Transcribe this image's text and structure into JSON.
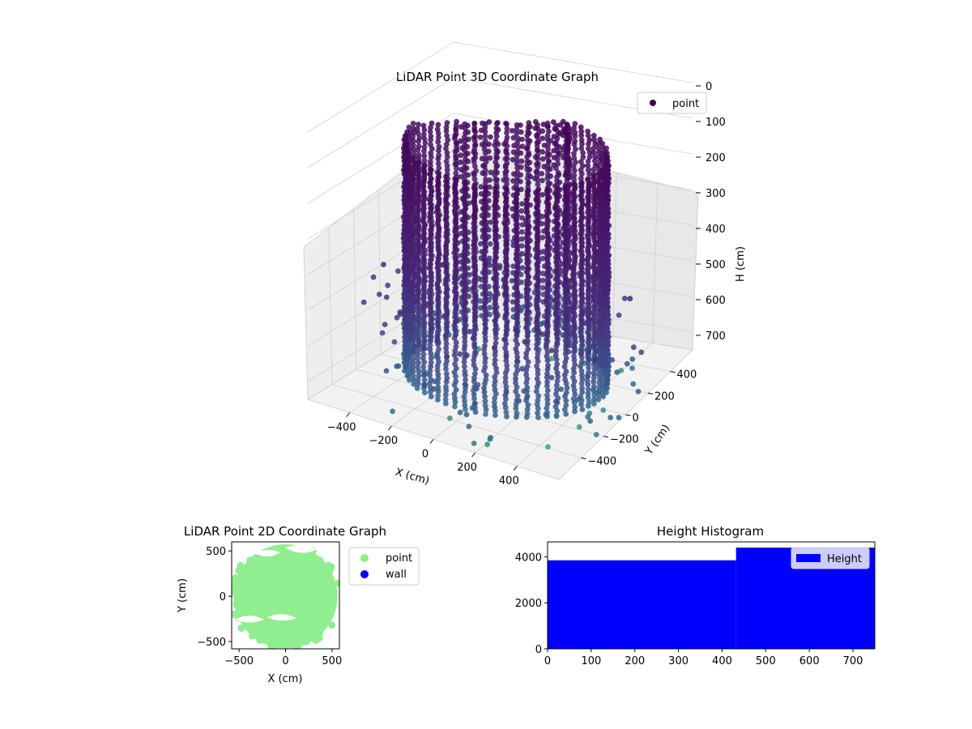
{
  "chart_data": [
    {
      "type": "scatter",
      "title": "LiDAR Point 3D Coordinate Graph",
      "xlabel": "X (cm)",
      "ylabel": "Y (cm)",
      "zlabel": "H (cm)",
      "xlim": [
        -600,
        600
      ],
      "ylim": [
        -600,
        600
      ],
      "zlim": [
        0,
        750
      ],
      "z_inverted": true,
      "x_ticks": [
        -400,
        -200,
        0,
        200,
        400
      ],
      "y_ticks": [
        -400,
        -200,
        0,
        200,
        400
      ],
      "z_ticks": [
        0,
        100,
        200,
        300,
        400,
        500,
        600,
        700
      ],
      "x_tick_labels": [
        "−400",
        "−200",
        "0",
        "200",
        "400"
      ],
      "y_tick_labels": [
        "−400",
        "−200",
        "0",
        "200",
        "400"
      ],
      "z_tick_labels": [
        "0",
        "100",
        "200",
        "300",
        "400",
        "500",
        "600",
        "700"
      ],
      "colormap": "viridis",
      "grid": true,
      "legend": {
        "placement": "upper-right",
        "entries": [
          "point"
        ]
      },
      "series": [
        {
          "name": "point",
          "color": "#440154",
          "structure": {
            "ring_radius": 420,
            "ring_height_range": [
              60,
              700
            ],
            "inner_arc_height_range": [
              0,
              600
            ],
            "outlier_height_range": [
              450,
              750
            ]
          }
        }
      ]
    },
    {
      "type": "scatter",
      "title": "LiDAR Point 2D Coordinate Graph",
      "xlabel": "X (cm)",
      "ylabel": "Y (cm)",
      "xlim": [
        -580,
        580
      ],
      "ylim": [
        -580,
        600
      ],
      "x_ticks": [
        -500,
        0,
        500
      ],
      "y_ticks": [
        -500,
        0,
        500
      ],
      "x_tick_labels": [
        "−500",
        "0",
        "500"
      ],
      "y_tick_labels": [
        "−500",
        "0",
        "500"
      ],
      "legend": {
        "placement": "outside-right",
        "entries": [
          "point",
          "wall"
        ]
      },
      "series": [
        {
          "name": "point",
          "color": "#90ee90"
        },
        {
          "name": "wall",
          "color": "#0000ff"
        }
      ]
    },
    {
      "type": "bar",
      "title": "Height Histogram",
      "xlabel": "",
      "ylabel": "",
      "xlim": [
        0,
        750
      ],
      "ylim": [
        0,
        4650
      ],
      "x_ticks": [
        0,
        100,
        200,
        300,
        400,
        500,
        600,
        700
      ],
      "y_ticks": [
        0,
        2000,
        4000
      ],
      "x_tick_labels": [
        "0",
        "100",
        "200",
        "300",
        "400",
        "500",
        "600",
        "700"
      ],
      "y_tick_labels": [
        "0",
        "2000",
        "4000"
      ],
      "bins": [
        {
          "start": 0,
          "end": 432,
          "count": 3850
        },
        {
          "start": 432,
          "end": 750,
          "count": 4400
        }
      ],
      "legend": {
        "placement": "upper-right",
        "entries": [
          "Height"
        ]
      },
      "series": [
        {
          "name": "Height",
          "color": "#0000ff"
        }
      ]
    }
  ]
}
